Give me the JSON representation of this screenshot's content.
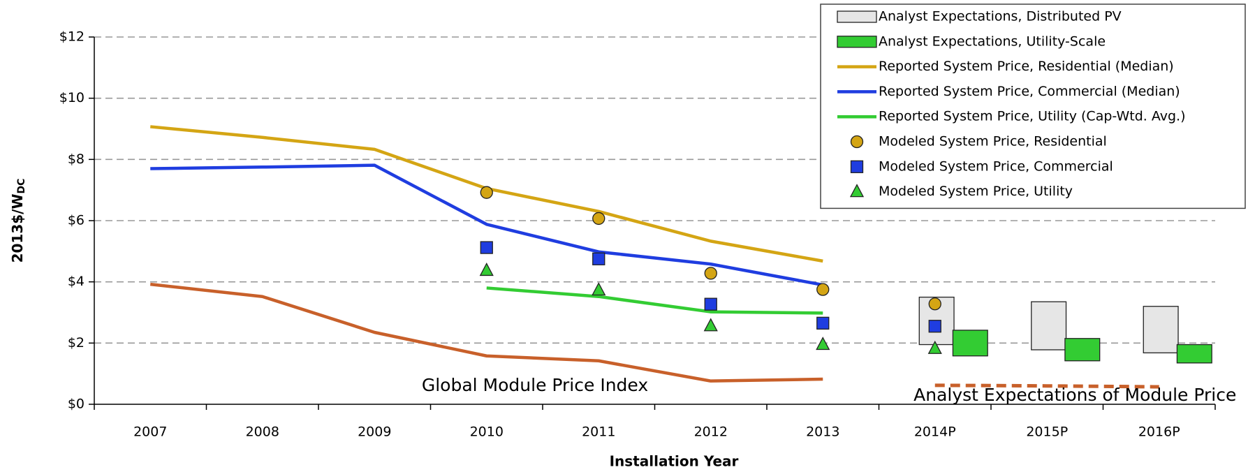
{
  "chart_data": {
    "type": "line",
    "y_label": "2013$/W",
    "y_label_sub": "DC",
    "x_label": "Installation Year",
    "categories": [
      "2007",
      "2008",
      "2009",
      "2010",
      "2011",
      "2012",
      "2013",
      "2014P",
      "2015P",
      "2016P"
    ],
    "ylim": [
      0,
      12
    ],
    "yticks": [
      {
        "value": 0,
        "label": "$0"
      },
      {
        "value": 2,
        "label": "$2"
      },
      {
        "value": 4,
        "label": "$4"
      },
      {
        "value": 6,
        "label": "$6"
      },
      {
        "value": 8,
        "label": "$8"
      },
      {
        "value": 10,
        "label": "$10"
      },
      {
        "value": 12,
        "label": "$12"
      }
    ],
    "grid": true,
    "legend": "upper right",
    "series": [
      {
        "name": "Analyst Expectations, Distributed PV",
        "kind": "range",
        "offset": "left",
        "color": "#e6e6e6",
        "low": [
          null,
          null,
          null,
          null,
          null,
          null,
          null,
          1.95,
          1.78,
          1.68
        ],
        "high": [
          null,
          null,
          null,
          null,
          null,
          null,
          null,
          3.5,
          3.35,
          3.2
        ]
      },
      {
        "name": "Analyst Expectations, Utility-Scale",
        "kind": "range",
        "offset": "right",
        "color": "#33cc33",
        "low": [
          null,
          null,
          null,
          null,
          null,
          null,
          null,
          1.58,
          1.42,
          1.35
        ],
        "high": [
          null,
          null,
          null,
          null,
          null,
          null,
          null,
          2.42,
          2.15,
          1.95
        ]
      },
      {
        "name": "Reported System Price, Residential (Median)",
        "kind": "line",
        "color": "#d4a514",
        "values": [
          9.07,
          8.72,
          8.33,
          7.05,
          6.3,
          5.33,
          4.68,
          null,
          null,
          null
        ]
      },
      {
        "name": "Reported System Price, Commercial (Median)",
        "kind": "line",
        "color": "#1f3de0",
        "values": [
          7.7,
          7.75,
          7.81,
          5.88,
          4.98,
          4.58,
          3.9,
          null,
          null,
          null
        ]
      },
      {
        "name": "Reported System Price, Utility (Cap-Wtd. Avg.)",
        "kind": "line",
        "color": "#33cc33",
        "values": [
          null,
          null,
          null,
          3.8,
          3.52,
          3.02,
          2.98,
          null,
          null,
          null
        ]
      },
      {
        "name": "Modeled System Price, Residential",
        "kind": "marker",
        "marker": "circle",
        "color": "#d4a514",
        "values": [
          null,
          null,
          null,
          6.92,
          6.07,
          4.28,
          3.75,
          3.28,
          null,
          null
        ]
      },
      {
        "name": "Modeled System Price, Commercial",
        "kind": "marker",
        "marker": "square",
        "color": "#1f3de0",
        "values": [
          null,
          null,
          null,
          5.12,
          4.75,
          3.27,
          2.65,
          2.55,
          null,
          null
        ]
      },
      {
        "name": "Modeled System Price, Utility",
        "kind": "marker",
        "marker": "triangle",
        "color": "#33cc33",
        "values": [
          null,
          null,
          null,
          4.37,
          3.73,
          2.56,
          1.95,
          1.82,
          null,
          null
        ]
      },
      {
        "name": "Global Module Price Index",
        "kind": "line",
        "in_legend": false,
        "color": "#c8602a",
        "values": [
          3.92,
          3.52,
          2.35,
          1.58,
          1.42,
          0.76,
          0.82,
          null,
          null,
          null
        ]
      },
      {
        "name": "Analyst Expectations of Module Price",
        "kind": "line",
        "dashed": true,
        "in_legend": false,
        "color": "#c8602a",
        "values": [
          null,
          null,
          null,
          null,
          null,
          null,
          null,
          0.62,
          0.6,
          0.57
        ]
      }
    ]
  }
}
